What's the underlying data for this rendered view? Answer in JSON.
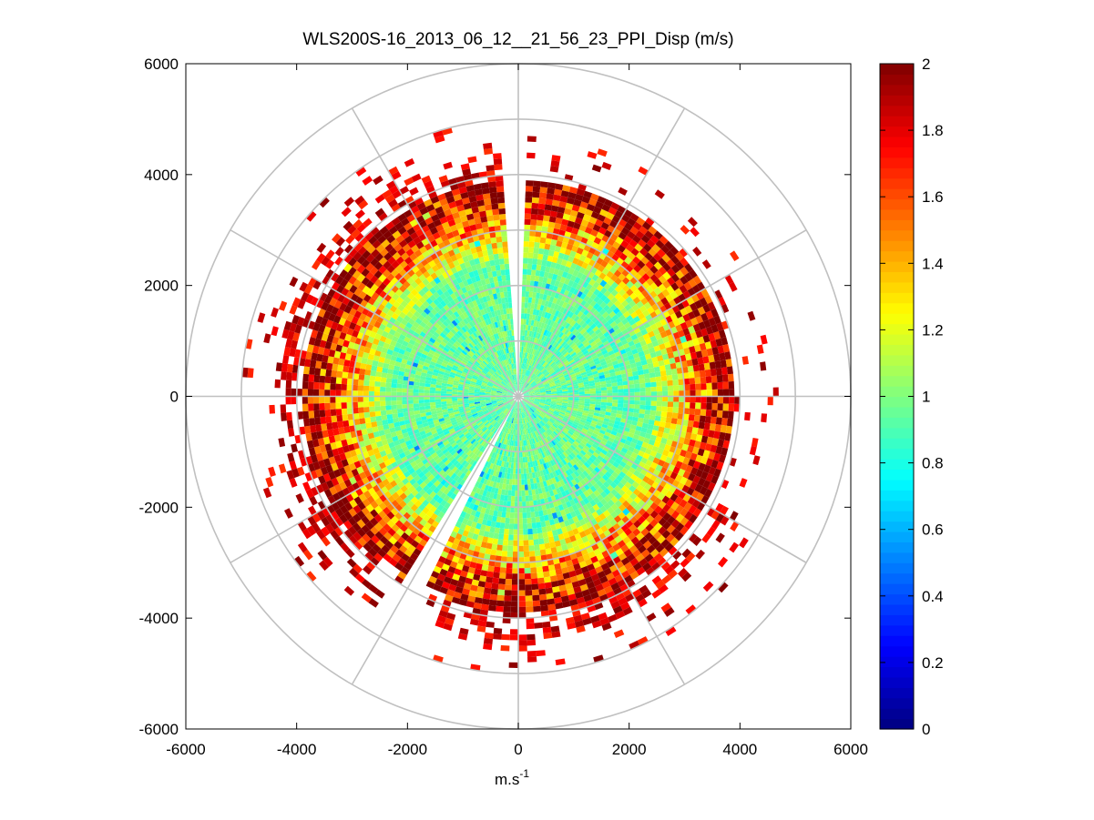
{
  "chart_data": {
    "type": "heatmap",
    "subtype": "polar-ppi",
    "title": "WLS200S-16_2013_06_12__21_56_23_PPI_Disp (m/s)",
    "xlabel_base": "m.s",
    "xlabel_exp": "-1",
    "ylabel": "",
    "xlim": [
      -6000,
      6000
    ],
    "ylim": [
      -6000,
      6000
    ],
    "xticks": [
      -6000,
      -4000,
      -2000,
      0,
      2000,
      4000,
      6000
    ],
    "yticks": [
      6000,
      4000,
      2000,
      0,
      -2000,
      -4000,
      -6000
    ],
    "xtick_labels": [
      "-6000",
      "-4000",
      "-2000",
      "0",
      "2000",
      "4000",
      "6000"
    ],
    "ytick_labels": [
      "6000",
      "4000",
      "2000",
      "0",
      "-2000",
      "-4000",
      "-6000"
    ],
    "polar_grid_radii": [
      1000,
      2000,
      3000,
      4000,
      5000,
      6000
    ],
    "polar_grid_angles_deg": [
      0,
      30,
      60,
      90,
      120,
      150,
      180,
      210,
      240,
      270,
      300,
      330
    ],
    "range_gate_m": 100,
    "azimuth_step_deg": 2,
    "inner_range_m": 100,
    "data_coverage": [
      {
        "az_from_deg": 0,
        "az_to_deg": 120,
        "max_range_m": 3800,
        "sparse_range_m": 4700
      },
      {
        "az_from_deg": 120,
        "az_to_deg": 200,
        "max_range_m": 4300,
        "sparse_range_m": 5100
      },
      {
        "az_from_deg": 200,
        "az_to_deg": 220,
        "max_range_m": 3700,
        "sparse_range_m": 4700
      },
      {
        "az_from_deg": 220,
        "az_to_deg": 340,
        "max_range_m": 4300,
        "sparse_range_m": 5000
      },
      {
        "az_from_deg": 340,
        "az_to_deg": 360,
        "max_range_m": 4300,
        "sparse_range_m": 5000
      }
    ],
    "data_gaps_deg": [
      [
        -4,
        2
      ],
      [
        207,
        212
      ]
    ],
    "value_model": {
      "near_range_value": 0.95,
      "far_range_value": 2.0,
      "transition_start_m": 2300,
      "transition_end_m": 3800
    },
    "colorbar": {
      "colormap": "jet",
      "range": [
        0,
        2
      ],
      "ticks": [
        0,
        0.2,
        0.4,
        0.6,
        0.8,
        1,
        1.2,
        1.4,
        1.6,
        1.8,
        2
      ],
      "tick_labels": [
        "0",
        "0.2",
        "0.4",
        "0.6",
        "0.8",
        "1",
        "1.2",
        "1.4",
        "1.6",
        "1.8",
        "2"
      ]
    },
    "grid_color": "#c0c0c0",
    "axis_color": "#000000"
  }
}
